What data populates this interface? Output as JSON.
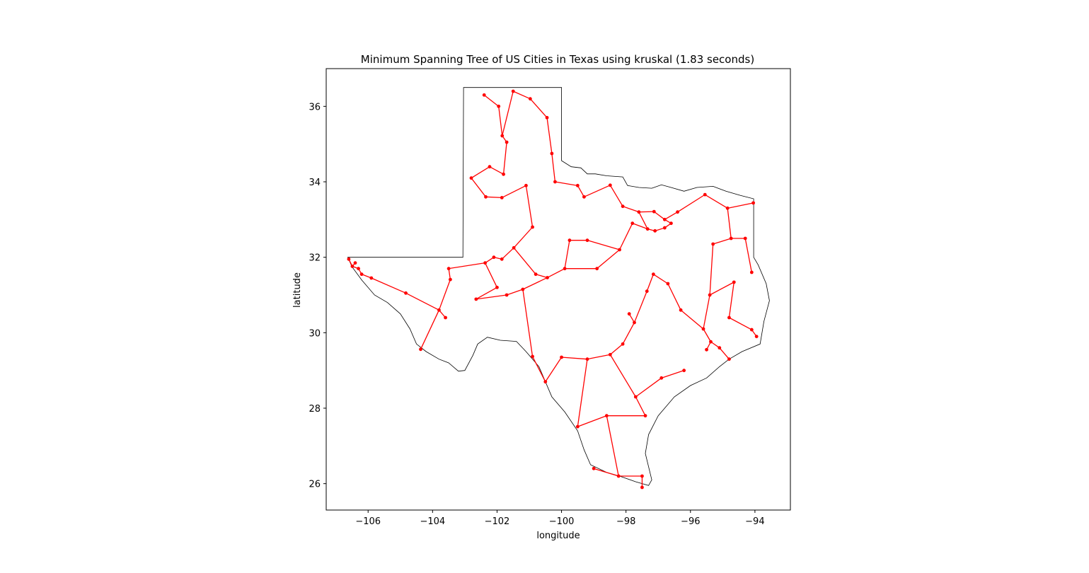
{
  "figure": {
    "title": "Minimum Spanning Tree of US Cities in Texas using kruskal (1.83 seconds)",
    "xlabel": "longitude",
    "ylabel": "latitude"
  },
  "chart_data": {
    "type": "map",
    "title": "Minimum Spanning Tree of US Cities in Texas using kruskal (1.83 seconds)",
    "xlabel": "longitude",
    "ylabel": "latitude",
    "xlim": [
      -107.3,
      -92.9
    ],
    "ylim": [
      25.3,
      37.0
    ],
    "xticks": [
      -106,
      -104,
      -102,
      -100,
      -98,
      -96,
      -94
    ],
    "xtick_labels": [
      "−106",
      "−104",
      "−102",
      "−100",
      "−98",
      "−96",
      "−94"
    ],
    "yticks": [
      26,
      28,
      30,
      32,
      34,
      36
    ],
    "ytick_labels": [
      "26",
      "28",
      "30",
      "32",
      "34",
      "36"
    ],
    "grid": false,
    "colors": {
      "edges": "#ff0000",
      "nodes": "#ff0000",
      "outline": "#000000"
    },
    "state_outline": [
      [
        -103.04,
        36.5
      ],
      [
        -100.0,
        36.5
      ],
      [
        -100.0,
        34.56
      ],
      [
        -99.7,
        34.4
      ],
      [
        -99.4,
        34.37
      ],
      [
        -99.2,
        34.21
      ],
      [
        -98.95,
        34.21
      ],
      [
        -98.6,
        34.16
      ],
      [
        -98.1,
        34.13
      ],
      [
        -97.95,
        33.9
      ],
      [
        -97.6,
        33.85
      ],
      [
        -97.2,
        33.83
      ],
      [
        -96.9,
        33.92
      ],
      [
        -96.6,
        33.85
      ],
      [
        -96.2,
        33.75
      ],
      [
        -95.8,
        33.85
      ],
      [
        -95.3,
        33.88
      ],
      [
        -94.9,
        33.75
      ],
      [
        -94.45,
        33.64
      ],
      [
        -94.04,
        33.55
      ],
      [
        -94.04,
        32.0
      ],
      [
        -93.9,
        31.8
      ],
      [
        -93.65,
        31.3
      ],
      [
        -93.55,
        30.85
      ],
      [
        -93.72,
        30.3
      ],
      [
        -93.84,
        29.7
      ],
      [
        -94.4,
        29.5
      ],
      [
        -94.8,
        29.3
      ],
      [
        -95.1,
        29.1
      ],
      [
        -95.5,
        28.8
      ],
      [
        -96.0,
        28.6
      ],
      [
        -96.5,
        28.3
      ],
      [
        -97.0,
        27.8
      ],
      [
        -97.3,
        27.3
      ],
      [
        -97.4,
        26.8
      ],
      [
        -97.2,
        26.1
      ],
      [
        -97.3,
        25.95
      ],
      [
        -97.7,
        26.05
      ],
      [
        -98.2,
        26.2
      ],
      [
        -98.6,
        26.3
      ],
      [
        -99.1,
        26.5
      ],
      [
        -99.3,
        26.9
      ],
      [
        -99.5,
        27.4
      ],
      [
        -99.9,
        27.9
      ],
      [
        -100.3,
        28.3
      ],
      [
        -100.5,
        28.7
      ],
      [
        -100.7,
        29.1
      ],
      [
        -101.1,
        29.5
      ],
      [
        -101.4,
        29.77
      ],
      [
        -101.9,
        29.8
      ],
      [
        -102.3,
        29.88
      ],
      [
        -102.6,
        29.7
      ],
      [
        -102.75,
        29.4
      ],
      [
        -103.0,
        29.0
      ],
      [
        -103.2,
        28.98
      ],
      [
        -103.5,
        29.2
      ],
      [
        -103.8,
        29.3
      ],
      [
        -104.2,
        29.5
      ],
      [
        -104.5,
        29.7
      ],
      [
        -104.7,
        30.1
      ],
      [
        -105.0,
        30.5
      ],
      [
        -105.4,
        30.8
      ],
      [
        -105.8,
        31.0
      ],
      [
        -106.2,
        31.4
      ],
      [
        -106.5,
        31.75
      ],
      [
        -106.63,
        32.0
      ],
      [
        -103.06,
        32.0
      ],
      [
        -103.04,
        36.5
      ]
    ],
    "nodes": [
      [
        -106.49,
        31.76
      ],
      [
        -106.4,
        31.85
      ],
      [
        -106.3,
        31.7
      ],
      [
        -106.2,
        31.55
      ],
      [
        -106.6,
        31.95
      ],
      [
        -105.9,
        31.45
      ],
      [
        -104.83,
        31.05
      ],
      [
        -103.8,
        30.6
      ],
      [
        -103.6,
        30.4
      ],
      [
        -104.37,
        29.56
      ],
      [
        -103.45,
        31.41
      ],
      [
        -103.5,
        31.7
      ],
      [
        -102.37,
        31.85
      ],
      [
        -102.1,
        32.0
      ],
      [
        -101.85,
        31.95
      ],
      [
        -102.0,
        31.2
      ],
      [
        -101.48,
        32.25
      ],
      [
        -100.44,
        31.46
      ],
      [
        -100.8,
        31.55
      ],
      [
        -101.2,
        31.15
      ],
      [
        -99.9,
        31.7
      ],
      [
        -99.75,
        32.45
      ],
      [
        -99.2,
        32.45
      ],
      [
        -100.9,
        32.8
      ],
      [
        -101.1,
        33.9
      ],
      [
        -101.85,
        33.58
      ],
      [
        -102.35,
        33.6
      ],
      [
        -102.8,
        34.1
      ],
      [
        -102.23,
        34.4
      ],
      [
        -101.8,
        34.2
      ],
      [
        -101.7,
        35.05
      ],
      [
        -101.84,
        35.22
      ],
      [
        -101.95,
        36.0
      ],
      [
        -102.4,
        36.3
      ],
      [
        -101.5,
        36.4
      ],
      [
        -100.97,
        36.2
      ],
      [
        -100.45,
        35.7
      ],
      [
        -100.3,
        34.75
      ],
      [
        -100.2,
        34.0
      ],
      [
        -99.5,
        33.9
      ],
      [
        -99.3,
        33.6
      ],
      [
        -98.49,
        33.91
      ],
      [
        -98.1,
        33.35
      ],
      [
        -97.6,
        33.2
      ],
      [
        -97.13,
        33.21
      ],
      [
        -96.8,
        33.0
      ],
      [
        -97.33,
        32.75
      ],
      [
        -96.8,
        32.78
      ],
      [
        -96.6,
        32.9
      ],
      [
        -97.1,
        32.7
      ],
      [
        -96.4,
        33.2
      ],
      [
        -95.55,
        33.66
      ],
      [
        -94.85,
        33.3
      ],
      [
        -94.05,
        33.44
      ],
      [
        -94.74,
        32.5
      ],
      [
        -95.3,
        32.35
      ],
      [
        -94.3,
        32.5
      ],
      [
        -94.1,
        31.6
      ],
      [
        -94.65,
        31.34
      ],
      [
        -95.4,
        31.0
      ],
      [
        -94.8,
        30.4
      ],
      [
        -94.1,
        30.08
      ],
      [
        -93.95,
        29.9
      ],
      [
        -95.37,
        29.76
      ],
      [
        -95.1,
        29.6
      ],
      [
        -95.5,
        29.55
      ],
      [
        -94.8,
        29.3
      ],
      [
        -95.6,
        30.1
      ],
      [
        -96.3,
        30.6
      ],
      [
        -96.7,
        31.3
      ],
      [
        -97.15,
        31.55
      ],
      [
        -97.35,
        31.1
      ],
      [
        -97.74,
        30.27
      ],
      [
        -97.9,
        30.5
      ],
      [
        -98.49,
        29.42
      ],
      [
        -98.1,
        29.7
      ],
      [
        -99.2,
        29.3
      ],
      [
        -100.0,
        29.35
      ],
      [
        -100.5,
        28.7
      ],
      [
        -99.5,
        27.51
      ],
      [
        -98.6,
        27.8
      ],
      [
        -97.4,
        27.8
      ],
      [
        -97.7,
        28.3
      ],
      [
        -96.9,
        28.8
      ],
      [
        -97.5,
        26.2
      ],
      [
        -98.23,
        26.2
      ],
      [
        -97.5,
        25.9
      ],
      [
        -99.0,
        26.4
      ],
      [
        -96.2,
        29.0
      ],
      [
        -100.9,
        29.37
      ],
      [
        -101.7,
        31.0
      ],
      [
        -102.65,
        30.89
      ],
      [
        -98.9,
        31.7
      ],
      [
        -98.2,
        32.2
      ],
      [
        -97.8,
        32.9
      ]
    ],
    "edges": [
      [
        0,
        1
      ],
      [
        0,
        2
      ],
      [
        2,
        3
      ],
      [
        0,
        4
      ],
      [
        3,
        5
      ],
      [
        5,
        6
      ],
      [
        6,
        7
      ],
      [
        7,
        8
      ],
      [
        7,
        9
      ],
      [
        7,
        10
      ],
      [
        10,
        11
      ],
      [
        11,
        12
      ],
      [
        12,
        13
      ],
      [
        13,
        14
      ],
      [
        14,
        16
      ],
      [
        12,
        15
      ],
      [
        16,
        18
      ],
      [
        18,
        17
      ],
      [
        17,
        19
      ],
      [
        17,
        20
      ],
      [
        20,
        21
      ],
      [
        21,
        22
      ],
      [
        16,
        23
      ],
      [
        23,
        24
      ],
      [
        24,
        25
      ],
      [
        25,
        26
      ],
      [
        26,
        27
      ],
      [
        27,
        28
      ],
      [
        28,
        29
      ],
      [
        29,
        30
      ],
      [
        30,
        31
      ],
      [
        31,
        32
      ],
      [
        32,
        33
      ],
      [
        31,
        34
      ],
      [
        34,
        35
      ],
      [
        35,
        36
      ],
      [
        36,
        37
      ],
      [
        37,
        38
      ],
      [
        38,
        39
      ],
      [
        39,
        40
      ],
      [
        40,
        41
      ],
      [
        41,
        42
      ],
      [
        42,
        43
      ],
      [
        43,
        44
      ],
      [
        44,
        45
      ],
      [
        43,
        46
      ],
      [
        46,
        49
      ],
      [
        49,
        47
      ],
      [
        47,
        48
      ],
      [
        48,
        45
      ],
      [
        45,
        50
      ],
      [
        50,
        51
      ],
      [
        51,
        52
      ],
      [
        52,
        53
      ],
      [
        52,
        54
      ],
      [
        54,
        56
      ],
      [
        56,
        57
      ],
      [
        54,
        55
      ],
      [
        55,
        59
      ],
      [
        59,
        58
      ],
      [
        58,
        60
      ],
      [
        60,
        61
      ],
      [
        61,
        62
      ],
      [
        59,
        67
      ],
      [
        67,
        63
      ],
      [
        63,
        64
      ],
      [
        63,
        65
      ],
      [
        64,
        66
      ],
      [
        67,
        68
      ],
      [
        68,
        69
      ],
      [
        69,
        70
      ],
      [
        70,
        71
      ],
      [
        71,
        72
      ],
      [
        72,
        73
      ],
      [
        72,
        75
      ],
      [
        75,
        74
      ],
      [
        74,
        76
      ],
      [
        76,
        77
      ],
      [
        77,
        78
      ],
      [
        76,
        79
      ],
      [
        79,
        80
      ],
      [
        80,
        81
      ],
      [
        81,
        82
      ],
      [
        74,
        82
      ],
      [
        82,
        83
      ],
      [
        80,
        85
      ],
      [
        85,
        84
      ],
      [
        84,
        86
      ],
      [
        85,
        87
      ],
      [
        83,
        88
      ],
      [
        78,
        89
      ],
      [
        89,
        19
      ],
      [
        19,
        90
      ],
      [
        90,
        91
      ],
      [
        91,
        15
      ],
      [
        20,
        92
      ],
      [
        92,
        93
      ],
      [
        93,
        94
      ],
      [
        94,
        46
      ],
      [
        22,
        93
      ]
    ]
  }
}
